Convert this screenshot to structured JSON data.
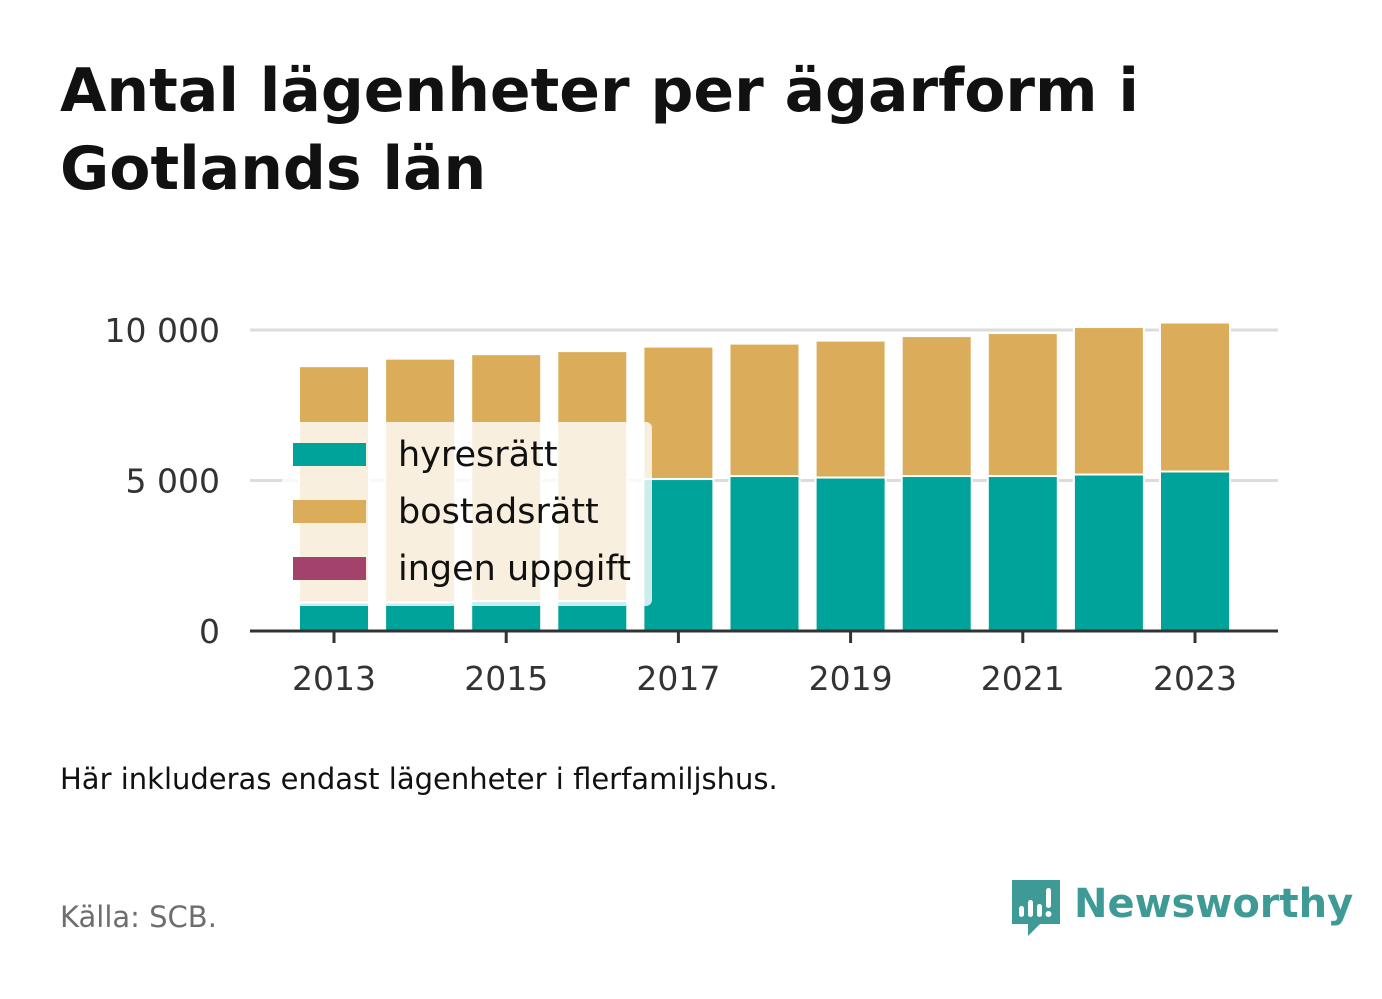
{
  "title": "Antal lägenheter per ägarform i Gotlands län",
  "note": "Här inkluderas endast lägenheter i flerfamiljshus.",
  "source": "Källa: SCB.",
  "brand": {
    "name": "Newsworthy",
    "icon": "newsworthy-logo-icon",
    "color": "#3e9a95"
  },
  "chart_data": {
    "type": "bar",
    "stacked": true,
    "categories": [
      2013,
      2014,
      2015,
      2016,
      2017,
      2018,
      2019,
      2020,
      2021,
      2022,
      2023
    ],
    "x_tick_labels": [
      "2013",
      "2015",
      "2017",
      "2019",
      "2021",
      "2023"
    ],
    "y_ticks": [
      0,
      5000,
      10000
    ],
    "y_tick_labels": [
      "0",
      "5 000",
      "10 000"
    ],
    "ylim": [
      0,
      10600
    ],
    "grid": true,
    "legend_position": "top-left",
    "series": [
      {
        "name": "hyresrätt",
        "color": "#00a39a",
        "values": [
          950,
          950,
          1000,
          1000,
          5050,
          5150,
          5100,
          5150,
          5150,
          5200,
          5300
        ]
      },
      {
        "name": "bostadsrätt",
        "color": "#dbad5a",
        "values": [
          7850,
          8100,
          8200,
          8300,
          4400,
          4400,
          4550,
          4650,
          4750,
          4900,
          4950
        ]
      },
      {
        "name": "ingen uppgift",
        "color": "#a3436b",
        "values": [
          0,
          0,
          0,
          0,
          0,
          0,
          0,
          0,
          0,
          0,
          0
        ]
      }
    ]
  }
}
